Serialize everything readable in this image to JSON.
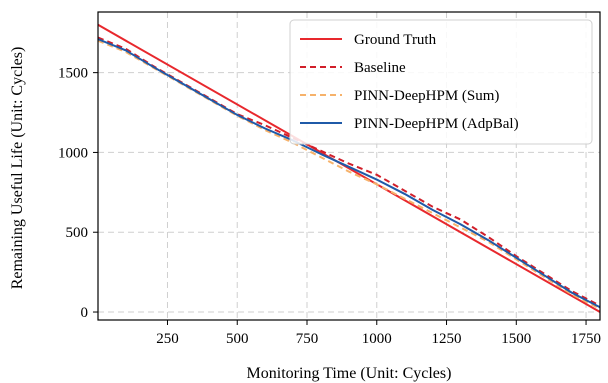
{
  "chart_data": {
    "type": "line",
    "xlabel": "Monitoring Time (Unit: Cycles)",
    "ylabel": "Remaining Useful Life (Unit: Cycles)",
    "xlim": [
      1,
      1800
    ],
    "ylim": [
      -50,
      1880
    ],
    "xticks": [
      250,
      500,
      750,
      1000,
      1250,
      1500,
      1750
    ],
    "yticks": [
      0,
      500,
      1000,
      1500
    ],
    "grid": true,
    "grid_style": "dashed",
    "legend_position": "top-right",
    "series": [
      {
        "name": "Ground Truth",
        "color": "#e8282d",
        "style": "solid",
        "x": [
          1,
          1800
        ],
        "y": [
          1800,
          0
        ]
      },
      {
        "name": "Baseline",
        "color": "#d11f2a",
        "style": "dashed",
        "x": [
          1,
          100,
          200,
          300,
          400,
          500,
          600,
          700,
          800,
          900,
          1000,
          1100,
          1200,
          1300,
          1400,
          1500,
          1600,
          1700,
          1800
        ],
        "y": [
          1720,
          1650,
          1540,
          1440,
          1340,
          1240,
          1170,
          1090,
          1010,
          930,
          860,
          760,
          660,
          580,
          470,
          350,
          240,
          130,
          40
        ]
      },
      {
        "name": "PINN-DeepHPM (Sum)",
        "color": "#f6b26b",
        "style": "dashed",
        "x": [
          1,
          100,
          200,
          300,
          400,
          500,
          600,
          700,
          800,
          900,
          1000,
          1100,
          1200,
          1300,
          1400,
          1500,
          1600,
          1700,
          1800
        ],
        "y": [
          1700,
          1630,
          1530,
          1430,
          1330,
          1230,
          1140,
          1060,
          970,
          880,
          800,
          710,
          620,
          530,
          440,
          330,
          220,
          110,
          20
        ]
      },
      {
        "name": "PINN-DeepHPM (AdpBal)",
        "color": "#1f5aa8",
        "style": "solid",
        "x": [
          1,
          100,
          200,
          300,
          400,
          500,
          600,
          700,
          800,
          900,
          1000,
          1100,
          1200,
          1300,
          1400,
          1500,
          1600,
          1700,
          1800
        ],
        "y": [
          1710,
          1640,
          1535,
          1435,
          1335,
          1235,
          1150,
          1075,
          990,
          910,
          830,
          740,
          640,
          550,
          450,
          340,
          230,
          120,
          30
        ]
      }
    ]
  }
}
